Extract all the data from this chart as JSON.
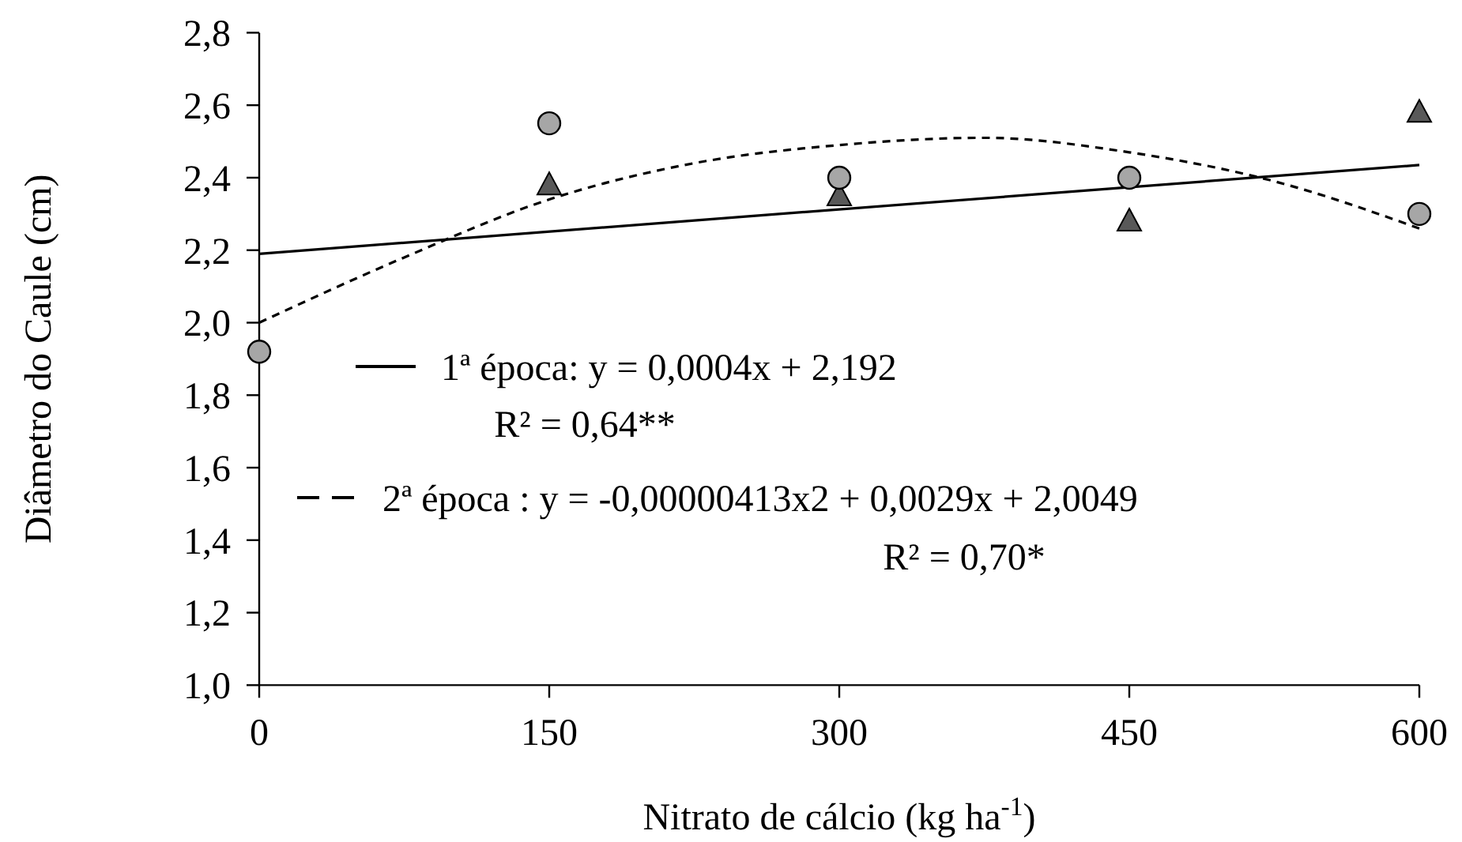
{
  "chart_data": {
    "type": "scatter",
    "xlabel": "Nitrato de cálcio (kg ha$^{-1}$)",
    "ylabel": "Diâmetro do Caule (cm)",
    "x": [
      0,
      150,
      300,
      450,
      600
    ],
    "xlim": [
      0,
      600
    ],
    "xticks": [
      0,
      150,
      300,
      450,
      600
    ],
    "ylim": [
      1.0,
      2.8
    ],
    "yticks": [
      {
        "value": 1.0,
        "label": "1,0"
      },
      {
        "value": 1.2,
        "label": "1,2"
      },
      {
        "value": 1.4,
        "label": "1,4"
      },
      {
        "value": 1.6,
        "label": "1,6"
      },
      {
        "value": 1.8,
        "label": "1,8"
      },
      {
        "value": 2.0,
        "label": "2,0"
      },
      {
        "value": 2.2,
        "label": "2,2"
      },
      {
        "value": 2.4,
        "label": "2,4"
      },
      {
        "value": 2.6,
        "label": "2,6"
      },
      {
        "value": 2.8,
        "label": "2,8"
      }
    ],
    "grid": false,
    "legend": "center",
    "series": [
      {
        "type": "line",
        "name": "1ª época: y = 0,0004x + 2,192",
        "color": "#000000",
        "line_style": "solid",
        "marker": "none",
        "x": [
          0,
          600
        ],
        "values": [
          2.19,
          2.435
        ]
      },
      {
        "type": "line",
        "name": "2ª época : y = -0,00000413x2 + 0,0029x + 2,0049",
        "color": "#000000",
        "line_style": "dashed",
        "marker": "none",
        "x": [
          0,
          75,
          150,
          225,
          300,
          375,
          450,
          525,
          600
        ],
        "values": [
          2.0,
          2.18,
          2.34,
          2.44,
          2.49,
          2.51,
          2.47,
          2.39,
          2.26
        ]
      },
      {
        "color": "#595959",
        "marker": "triangle",
        "values": [
          null,
          2.38,
          2.35,
          2.28,
          2.58
        ]
      },
      {
        "color": "#a6a6a6",
        "marker": "circle",
        "values": [
          1.92,
          2.55,
          2.4,
          2.4,
          2.3
        ]
      }
    ],
    "annotations": [
      "R² = 0,64**",
      "R² = 0,70*"
    ]
  }
}
